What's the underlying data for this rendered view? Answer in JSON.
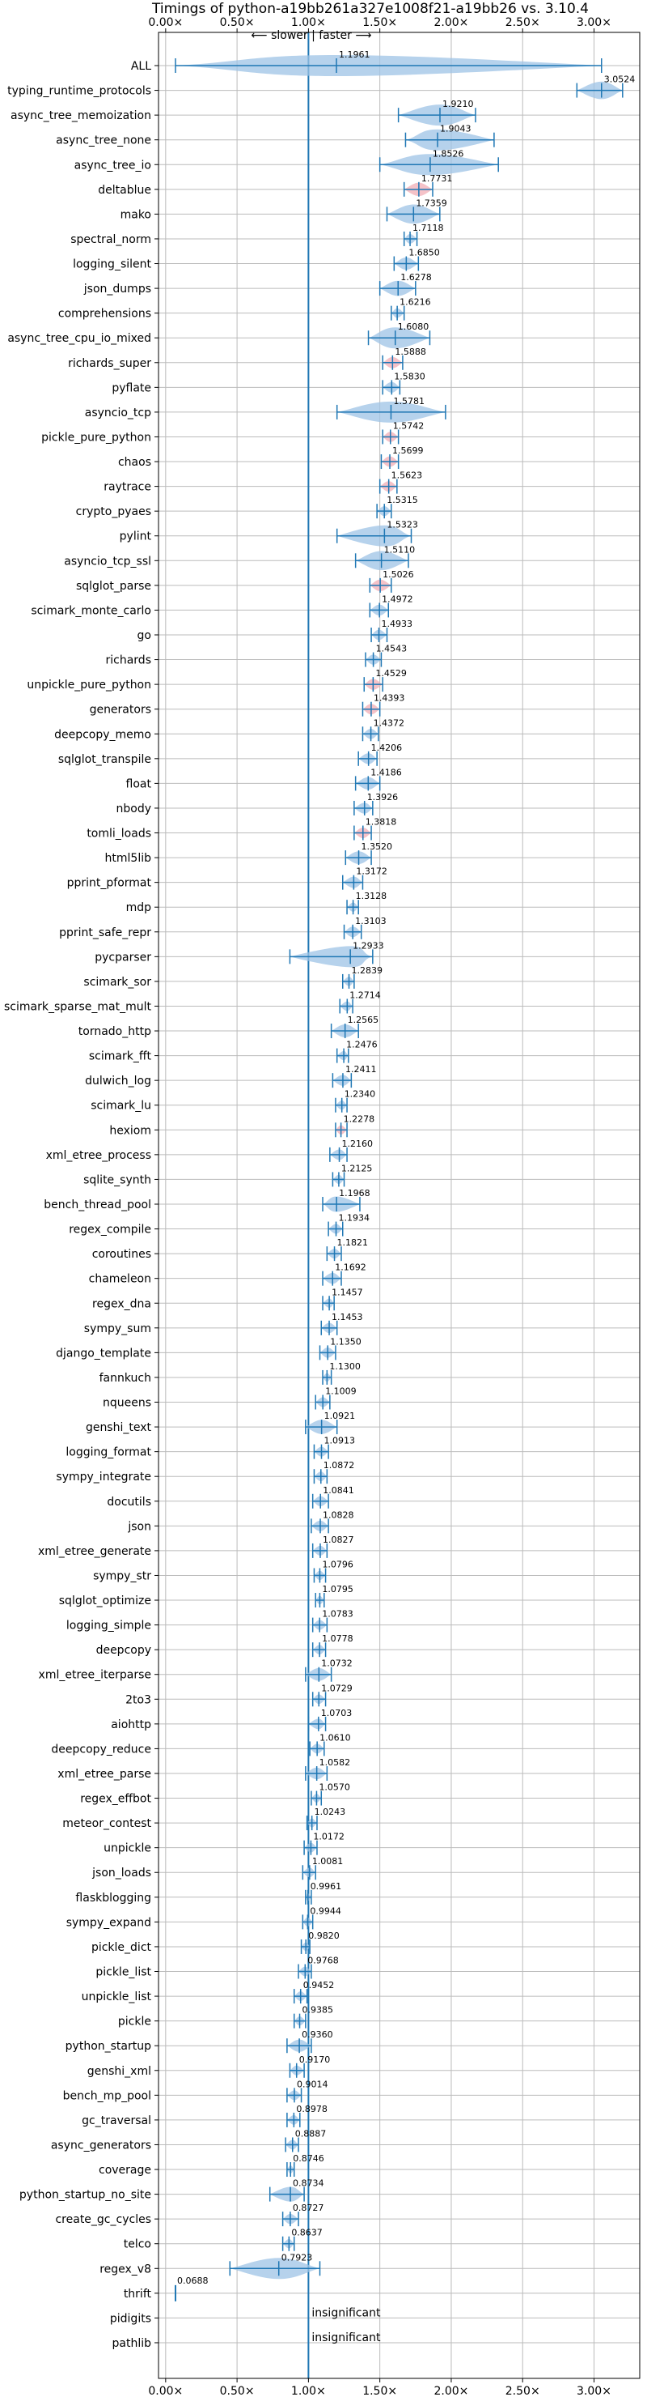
{
  "chart_data": {
    "type": "violin",
    "title": "Timings of python-a19bb261a327e1008f21-a19bb26 vs. 3.10.4",
    "direction_label": "⟵ slower | faster ⟶",
    "x_ticks": [
      "0.00×",
      "0.50×",
      "1.00×",
      "1.50×",
      "2.00×",
      "2.50×",
      "3.00×"
    ],
    "x_tick_values": [
      0,
      0.5,
      1.0,
      1.5,
      2.0,
      2.5,
      3.0
    ],
    "xlim": [
      -0.05,
      3.32
    ],
    "grid": true,
    "reference_line": 1.0,
    "colors": {
      "violin": "#9ec3e6",
      "violin_highlight": "#f2aeb6",
      "line": "#1f77b4",
      "grid": "#bbbbbb"
    },
    "benchmarks": [
      {
        "name": "ALL",
        "value": 1.1961,
        "label": "1.1961",
        "lo": 0.0688,
        "hi": 3.0524
      },
      {
        "name": "typing_runtime_protocols",
        "value": 3.0524,
        "label": "3.0524",
        "lo": 2.88,
        "hi": 3.2
      },
      {
        "name": "async_tree_memoization",
        "value": 1.921,
        "label": "1.9210",
        "lo": 1.63,
        "hi": 2.17
      },
      {
        "name": "async_tree_none",
        "value": 1.9043,
        "label": "1.9043",
        "lo": 1.68,
        "hi": 2.3
      },
      {
        "name": "async_tree_io",
        "value": 1.8526,
        "label": "1.8526",
        "lo": 1.5,
        "hi": 2.33
      },
      {
        "name": "deltablue",
        "value": 1.7731,
        "label": "1.7731",
        "lo": 1.67,
        "hi": 1.87,
        "highlight": true
      },
      {
        "name": "mako",
        "value": 1.7359,
        "label": "1.7359",
        "lo": 1.55,
        "hi": 1.92
      },
      {
        "name": "spectral_norm",
        "value": 1.7118,
        "label": "1.7118",
        "lo": 1.67,
        "hi": 1.76
      },
      {
        "name": "logging_silent",
        "value": 1.685,
        "label": "1.6850",
        "lo": 1.6,
        "hi": 1.77
      },
      {
        "name": "json_dumps",
        "value": 1.6278,
        "label": "1.6278",
        "lo": 1.5,
        "hi": 1.75
      },
      {
        "name": "comprehensions",
        "value": 1.6216,
        "label": "1.6216",
        "lo": 1.58,
        "hi": 1.67
      },
      {
        "name": "async_tree_cpu_io_mixed",
        "value": 1.608,
        "label": "1.6080",
        "lo": 1.42,
        "hi": 1.85
      },
      {
        "name": "richards_super",
        "value": 1.5888,
        "label": "1.5888",
        "lo": 1.52,
        "hi": 1.66,
        "highlight": true
      },
      {
        "name": "pyflate",
        "value": 1.583,
        "label": "1.5830",
        "lo": 1.52,
        "hi": 1.64
      },
      {
        "name": "asyncio_tcp",
        "value": 1.5781,
        "label": "1.5781",
        "lo": 1.2,
        "hi": 1.96
      },
      {
        "name": "pickle_pure_python",
        "value": 1.5742,
        "label": "1.5742",
        "lo": 1.52,
        "hi": 1.63,
        "highlight": true
      },
      {
        "name": "chaos",
        "value": 1.5699,
        "label": "1.5699",
        "lo": 1.51,
        "hi": 1.63,
        "highlight": true
      },
      {
        "name": "raytrace",
        "value": 1.5623,
        "label": "1.5623",
        "lo": 1.5,
        "hi": 1.62,
        "highlight": true
      },
      {
        "name": "crypto_pyaes",
        "value": 1.5315,
        "label": "1.5315",
        "lo": 1.48,
        "hi": 1.58
      },
      {
        "name": "pylint",
        "value": 1.5323,
        "label": "1.5323",
        "lo": 1.2,
        "hi": 1.72
      },
      {
        "name": "asyncio_tcp_ssl",
        "value": 1.511,
        "label": "1.5110",
        "lo": 1.33,
        "hi": 1.7
      },
      {
        "name": "sqlglot_parse",
        "value": 1.5026,
        "label": "1.5026",
        "lo": 1.43,
        "hi": 1.58,
        "highlight": true
      },
      {
        "name": "scimark_monte_carlo",
        "value": 1.4972,
        "label": "1.4972",
        "lo": 1.43,
        "hi": 1.56
      },
      {
        "name": "go",
        "value": 1.4933,
        "label": "1.4933",
        "lo": 1.44,
        "hi": 1.55
      },
      {
        "name": "richards",
        "value": 1.4543,
        "label": "1.4543",
        "lo": 1.4,
        "hi": 1.51
      },
      {
        "name": "unpickle_pure_python",
        "value": 1.4529,
        "label": "1.4529",
        "lo": 1.39,
        "hi": 1.52,
        "highlight": true
      },
      {
        "name": "generators",
        "value": 1.4393,
        "label": "1.4393",
        "lo": 1.38,
        "hi": 1.5,
        "highlight": true
      },
      {
        "name": "deepcopy_memo",
        "value": 1.4372,
        "label": "1.4372",
        "lo": 1.38,
        "hi": 1.49
      },
      {
        "name": "sqlglot_transpile",
        "value": 1.4206,
        "label": "1.4206",
        "lo": 1.35,
        "hi": 1.48
      },
      {
        "name": "float",
        "value": 1.4186,
        "label": "1.4186",
        "lo": 1.33,
        "hi": 1.5
      },
      {
        "name": "nbody",
        "value": 1.3926,
        "label": "1.3926",
        "lo": 1.32,
        "hi": 1.45
      },
      {
        "name": "tomli_loads",
        "value": 1.3818,
        "label": "1.3818",
        "lo": 1.32,
        "hi": 1.44,
        "highlight": true
      },
      {
        "name": "html5lib",
        "value": 1.352,
        "label": "1.3520",
        "lo": 1.26,
        "hi": 1.44
      },
      {
        "name": "pprint_pformat",
        "value": 1.3172,
        "label": "1.3172",
        "lo": 1.24,
        "hi": 1.38
      },
      {
        "name": "mdp",
        "value": 1.3128,
        "label": "1.3128",
        "lo": 1.27,
        "hi": 1.35
      },
      {
        "name": "pprint_safe_repr",
        "value": 1.3103,
        "label": "1.3103",
        "lo": 1.25,
        "hi": 1.37
      },
      {
        "name": "pycparser",
        "value": 1.2933,
        "label": "1.2933",
        "lo": 0.87,
        "hi": 1.45
      },
      {
        "name": "scimark_sor",
        "value": 1.2839,
        "label": "1.2839",
        "lo": 1.24,
        "hi": 1.32
      },
      {
        "name": "scimark_sparse_mat_mult",
        "value": 1.2714,
        "label": "1.2714",
        "lo": 1.22,
        "hi": 1.31
      },
      {
        "name": "tornado_http",
        "value": 1.2565,
        "label": "1.2565",
        "lo": 1.16,
        "hi": 1.35
      },
      {
        "name": "scimark_fft",
        "value": 1.2476,
        "label": "1.2476",
        "lo": 1.2,
        "hi": 1.28
      },
      {
        "name": "dulwich_log",
        "value": 1.2411,
        "label": "1.2411",
        "lo": 1.17,
        "hi": 1.3
      },
      {
        "name": "scimark_lu",
        "value": 1.234,
        "label": "1.2340",
        "lo": 1.19,
        "hi": 1.27
      },
      {
        "name": "hexiom",
        "value": 1.2278,
        "label": "1.2278",
        "lo": 1.19,
        "hi": 1.27,
        "highlight": true
      },
      {
        "name": "xml_etree_process",
        "value": 1.216,
        "label": "1.2160",
        "lo": 1.15,
        "hi": 1.27
      },
      {
        "name": "sqlite_synth",
        "value": 1.2125,
        "label": "1.2125",
        "lo": 1.17,
        "hi": 1.25
      },
      {
        "name": "bench_thread_pool",
        "value": 1.1968,
        "label": "1.1968",
        "lo": 1.1,
        "hi": 1.36
      },
      {
        "name": "regex_compile",
        "value": 1.1934,
        "label": "1.1934",
        "lo": 1.14,
        "hi": 1.24
      },
      {
        "name": "coroutines",
        "value": 1.1821,
        "label": "1.1821",
        "lo": 1.13,
        "hi": 1.23
      },
      {
        "name": "chameleon",
        "value": 1.1692,
        "label": "1.1692",
        "lo": 1.1,
        "hi": 1.23
      },
      {
        "name": "regex_dna",
        "value": 1.1457,
        "label": "1.1457",
        "lo": 1.1,
        "hi": 1.18
      },
      {
        "name": "sympy_sum",
        "value": 1.1453,
        "label": "1.1453",
        "lo": 1.09,
        "hi": 1.2
      },
      {
        "name": "django_template",
        "value": 1.135,
        "label": "1.1350",
        "lo": 1.08,
        "hi": 1.19
      },
      {
        "name": "fannkuch",
        "value": 1.13,
        "label": "1.1300",
        "lo": 1.1,
        "hi": 1.16
      },
      {
        "name": "nqueens",
        "value": 1.1009,
        "label": "1.1009",
        "lo": 1.05,
        "hi": 1.15
      },
      {
        "name": "genshi_text",
        "value": 1.0921,
        "label": "1.0921",
        "lo": 0.98,
        "hi": 1.2
      },
      {
        "name": "logging_format",
        "value": 1.0913,
        "label": "1.0913",
        "lo": 1.04,
        "hi": 1.14
      },
      {
        "name": "sympy_integrate",
        "value": 1.0872,
        "label": "1.0872",
        "lo": 1.04,
        "hi": 1.13
      },
      {
        "name": "docutils",
        "value": 1.0841,
        "label": "1.0841",
        "lo": 1.03,
        "hi": 1.14
      },
      {
        "name": "json",
        "value": 1.0828,
        "label": "1.0828",
        "lo": 1.02,
        "hi": 1.14
      },
      {
        "name": "xml_etree_generate",
        "value": 1.0827,
        "label": "1.0827",
        "lo": 1.03,
        "hi": 1.13
      },
      {
        "name": "sympy_str",
        "value": 1.0796,
        "label": "1.0796",
        "lo": 1.04,
        "hi": 1.12
      },
      {
        "name": "sqlglot_optimize",
        "value": 1.0795,
        "label": "1.0795",
        "lo": 1.05,
        "hi": 1.11
      },
      {
        "name": "logging_simple",
        "value": 1.0783,
        "label": "1.0783",
        "lo": 1.03,
        "hi": 1.13
      },
      {
        "name": "deepcopy",
        "value": 1.0778,
        "label": "1.0778",
        "lo": 1.03,
        "hi": 1.12
      },
      {
        "name": "xml_etree_iterparse",
        "value": 1.0732,
        "label": "1.0732",
        "lo": 0.98,
        "hi": 1.16
      },
      {
        "name": "2to3",
        "value": 1.0729,
        "label": "1.0729",
        "lo": 1.03,
        "hi": 1.12
      },
      {
        "name": "aiohttp",
        "value": 1.0703,
        "label": "1.0703",
        "lo": 1.0,
        "hi": 1.12
      },
      {
        "name": "deepcopy_reduce",
        "value": 1.061,
        "label": "1.0610",
        "lo": 1.01,
        "hi": 1.11
      },
      {
        "name": "xml_etree_parse",
        "value": 1.0582,
        "label": "1.0582",
        "lo": 0.98,
        "hi": 1.13
      },
      {
        "name": "regex_effbot",
        "value": 1.057,
        "label": "1.0570",
        "lo": 1.02,
        "hi": 1.09
      },
      {
        "name": "meteor_contest",
        "value": 1.0243,
        "label": "1.0243",
        "lo": 0.99,
        "hi": 1.06
      },
      {
        "name": "unpickle",
        "value": 1.0172,
        "label": "1.0172",
        "lo": 0.97,
        "hi": 1.06
      },
      {
        "name": "json_loads",
        "value": 1.0081,
        "label": "1.0081",
        "lo": 0.96,
        "hi": 1.05
      },
      {
        "name": "flaskblogging",
        "value": 0.9961,
        "label": "0.9961",
        "lo": 0.98,
        "hi": 1.02
      },
      {
        "name": "sympy_expand",
        "value": 0.9944,
        "label": "0.9944",
        "lo": 0.96,
        "hi": 1.03
      },
      {
        "name": "pickle_dict",
        "value": 0.982,
        "label": "0.9820",
        "lo": 0.95,
        "hi": 1.01
      },
      {
        "name": "pickle_list",
        "value": 0.9768,
        "label": "0.9768",
        "lo": 0.93,
        "hi": 1.02
      },
      {
        "name": "unpickle_list",
        "value": 0.9452,
        "label": "0.9452",
        "lo": 0.9,
        "hi": 0.99
      },
      {
        "name": "pickle",
        "value": 0.9385,
        "label": "0.9385",
        "lo": 0.9,
        "hi": 0.98
      },
      {
        "name": "python_startup",
        "value": 0.936,
        "label": "0.9360",
        "lo": 0.85,
        "hi": 1.02
      },
      {
        "name": "genshi_xml",
        "value": 0.917,
        "label": "0.9170",
        "lo": 0.87,
        "hi": 0.97
      },
      {
        "name": "bench_mp_pool",
        "value": 0.9014,
        "label": "0.9014",
        "lo": 0.85,
        "hi": 0.95
      },
      {
        "name": "gc_traversal",
        "value": 0.8978,
        "label": "0.8978",
        "lo": 0.85,
        "hi": 0.94
      },
      {
        "name": "async_generators",
        "value": 0.8887,
        "label": "0.8887",
        "lo": 0.84,
        "hi": 0.93
      },
      {
        "name": "coverage",
        "value": 0.8746,
        "label": "0.8746",
        "lo": 0.85,
        "hi": 0.9
      },
      {
        "name": "python_startup_no_site",
        "value": 0.8734,
        "label": "0.8734",
        "lo": 0.73,
        "hi": 0.97
      },
      {
        "name": "create_gc_cycles",
        "value": 0.8727,
        "label": "0.8727",
        "lo": 0.82,
        "hi": 0.93
      },
      {
        "name": "telco",
        "value": 0.8637,
        "label": "0.8637",
        "lo": 0.82,
        "hi": 0.9
      },
      {
        "name": "regex_v8",
        "value": 0.7923,
        "label": "0.7923",
        "lo": 0.45,
        "hi": 1.08
      },
      {
        "name": "thrift",
        "value": 0.0688,
        "label": "0.0688",
        "lo": 0.06,
        "hi": 0.08,
        "point": true
      },
      {
        "name": "pidigits",
        "note": "insignificant"
      },
      {
        "name": "pathlib",
        "note": "insignificant"
      }
    ]
  }
}
